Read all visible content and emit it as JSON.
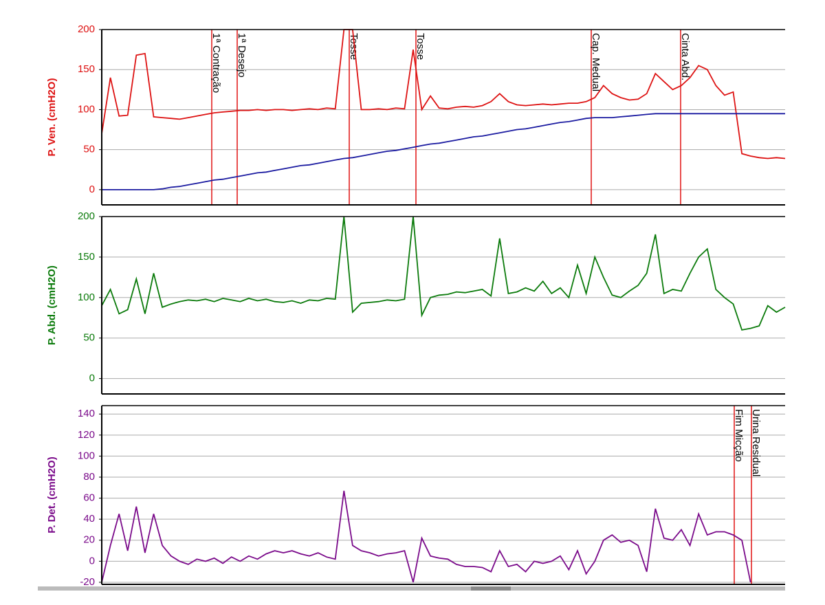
{
  "chart_data": [
    {
      "type": "line",
      "y_label": "P. Ven. (cmH2O)",
      "label_color": "#dd1111",
      "ylim": [
        -19,
        200
      ],
      "yticks": [
        0,
        50,
        100,
        150,
        200
      ],
      "grid": true,
      "annotations": [
        "1ª Contração",
        "1ª Desejo",
        "Tosse",
        "Tosse",
        "Cap. Medual",
        "Cinta Abd."
      ],
      "series": [
        {
          "color": "#dd1111",
          "values": [
            70,
            140,
            92,
            93,
            168,
            170,
            91,
            90,
            89,
            88,
            90,
            92,
            94,
            96,
            97,
            98,
            99,
            99,
            100,
            99,
            100,
            100,
            99,
            100,
            101,
            100,
            102,
            101,
            200,
            200,
            100,
            100,
            101,
            100,
            102,
            101,
            175,
            100,
            117,
            102,
            101,
            103,
            104,
            103,
            105,
            110,
            120,
            110,
            106,
            105,
            106,
            107,
            106,
            107,
            108,
            108,
            110,
            115,
            130,
            120,
            115,
            112,
            113,
            120,
            145,
            135,
            125,
            130,
            140,
            155,
            150,
            130,
            118,
            122,
            45,
            42,
            40,
            39,
            40,
            39
          ]
        },
        {
          "color": "#1a1aa0",
          "values": [
            0,
            0,
            0,
            0,
            0,
            0,
            0,
            1,
            3,
            4,
            6,
            8,
            10,
            12,
            13,
            15,
            17,
            19,
            21,
            22,
            24,
            26,
            28,
            30,
            31,
            33,
            35,
            37,
            39,
            40,
            42,
            44,
            46,
            48,
            49,
            51,
            53,
            55,
            57,
            58,
            60,
            62,
            64,
            66,
            67,
            69,
            71,
            73,
            75,
            76,
            78,
            80,
            82,
            84,
            85,
            87,
            89,
            90,
            90,
            90,
            91,
            92,
            93,
            94,
            95,
            95,
            95,
            95,
            95,
            95,
            95,
            95,
            95,
            95,
            95,
            95,
            95,
            95,
            95,
            95
          ]
        }
      ]
    },
    {
      "type": "line",
      "y_label": "P. Abd. (cmH2O)",
      "label_color": "#0a7a0a",
      "ylim": [
        -19,
        200
      ],
      "yticks": [
        0,
        50,
        100,
        150,
        200
      ],
      "grid": true,
      "annotations": [],
      "series": [
        {
          "color": "#0a7a0a",
          "values": [
            90,
            110,
            80,
            85,
            123,
            80,
            130,
            88,
            92,
            95,
            97,
            96,
            98,
            95,
            99,
            97,
            95,
            99,
            96,
            98,
            95,
            94,
            96,
            93,
            97,
            96,
            99,
            98,
            200,
            82,
            93,
            94,
            95,
            97,
            96,
            98,
            200,
            78,
            100,
            103,
            104,
            107,
            106,
            108,
            110,
            102,
            173,
            105,
            107,
            112,
            108,
            120,
            105,
            112,
            100,
            140,
            105,
            150,
            125,
            103,
            100,
            108,
            115,
            130,
            178,
            105,
            110,
            108,
            130,
            150,
            160,
            110,
            100,
            92,
            60,
            62,
            65,
            90,
            82,
            88
          ]
        }
      ]
    },
    {
      "type": "line",
      "y_label": "P. Det. (cmH2O)",
      "label_color": "#7a0a8a",
      "ylim": [
        -22,
        148
      ],
      "yticks": [
        -20,
        0,
        20,
        40,
        60,
        80,
        100,
        120,
        140
      ],
      "grid": true,
      "annotations": [
        "Fim Micção",
        "Urina Residual"
      ],
      "series": [
        {
          "color": "#7a0a8a",
          "values": [
            -20,
            15,
            45,
            10,
            52,
            8,
            45,
            15,
            5,
            0,
            -3,
            2,
            0,
            3,
            -2,
            4,
            0,
            5,
            2,
            7,
            10,
            8,
            10,
            7,
            5,
            8,
            4,
            2,
            67,
            15,
            10,
            8,
            5,
            7,
            8,
            10,
            -20,
            22,
            5,
            3,
            2,
            -3,
            -5,
            -5,
            -6,
            -10,
            10,
            -5,
            -3,
            -10,
            0,
            -2,
            0,
            5,
            -8,
            10,
            -12,
            0,
            20,
            25,
            18,
            20,
            15,
            -10,
            50,
            22,
            20,
            30,
            15,
            45,
            25,
            28,
            28,
            25,
            20,
            -20,
            null,
            null,
            null,
            null
          ]
        }
      ]
    }
  ]
}
